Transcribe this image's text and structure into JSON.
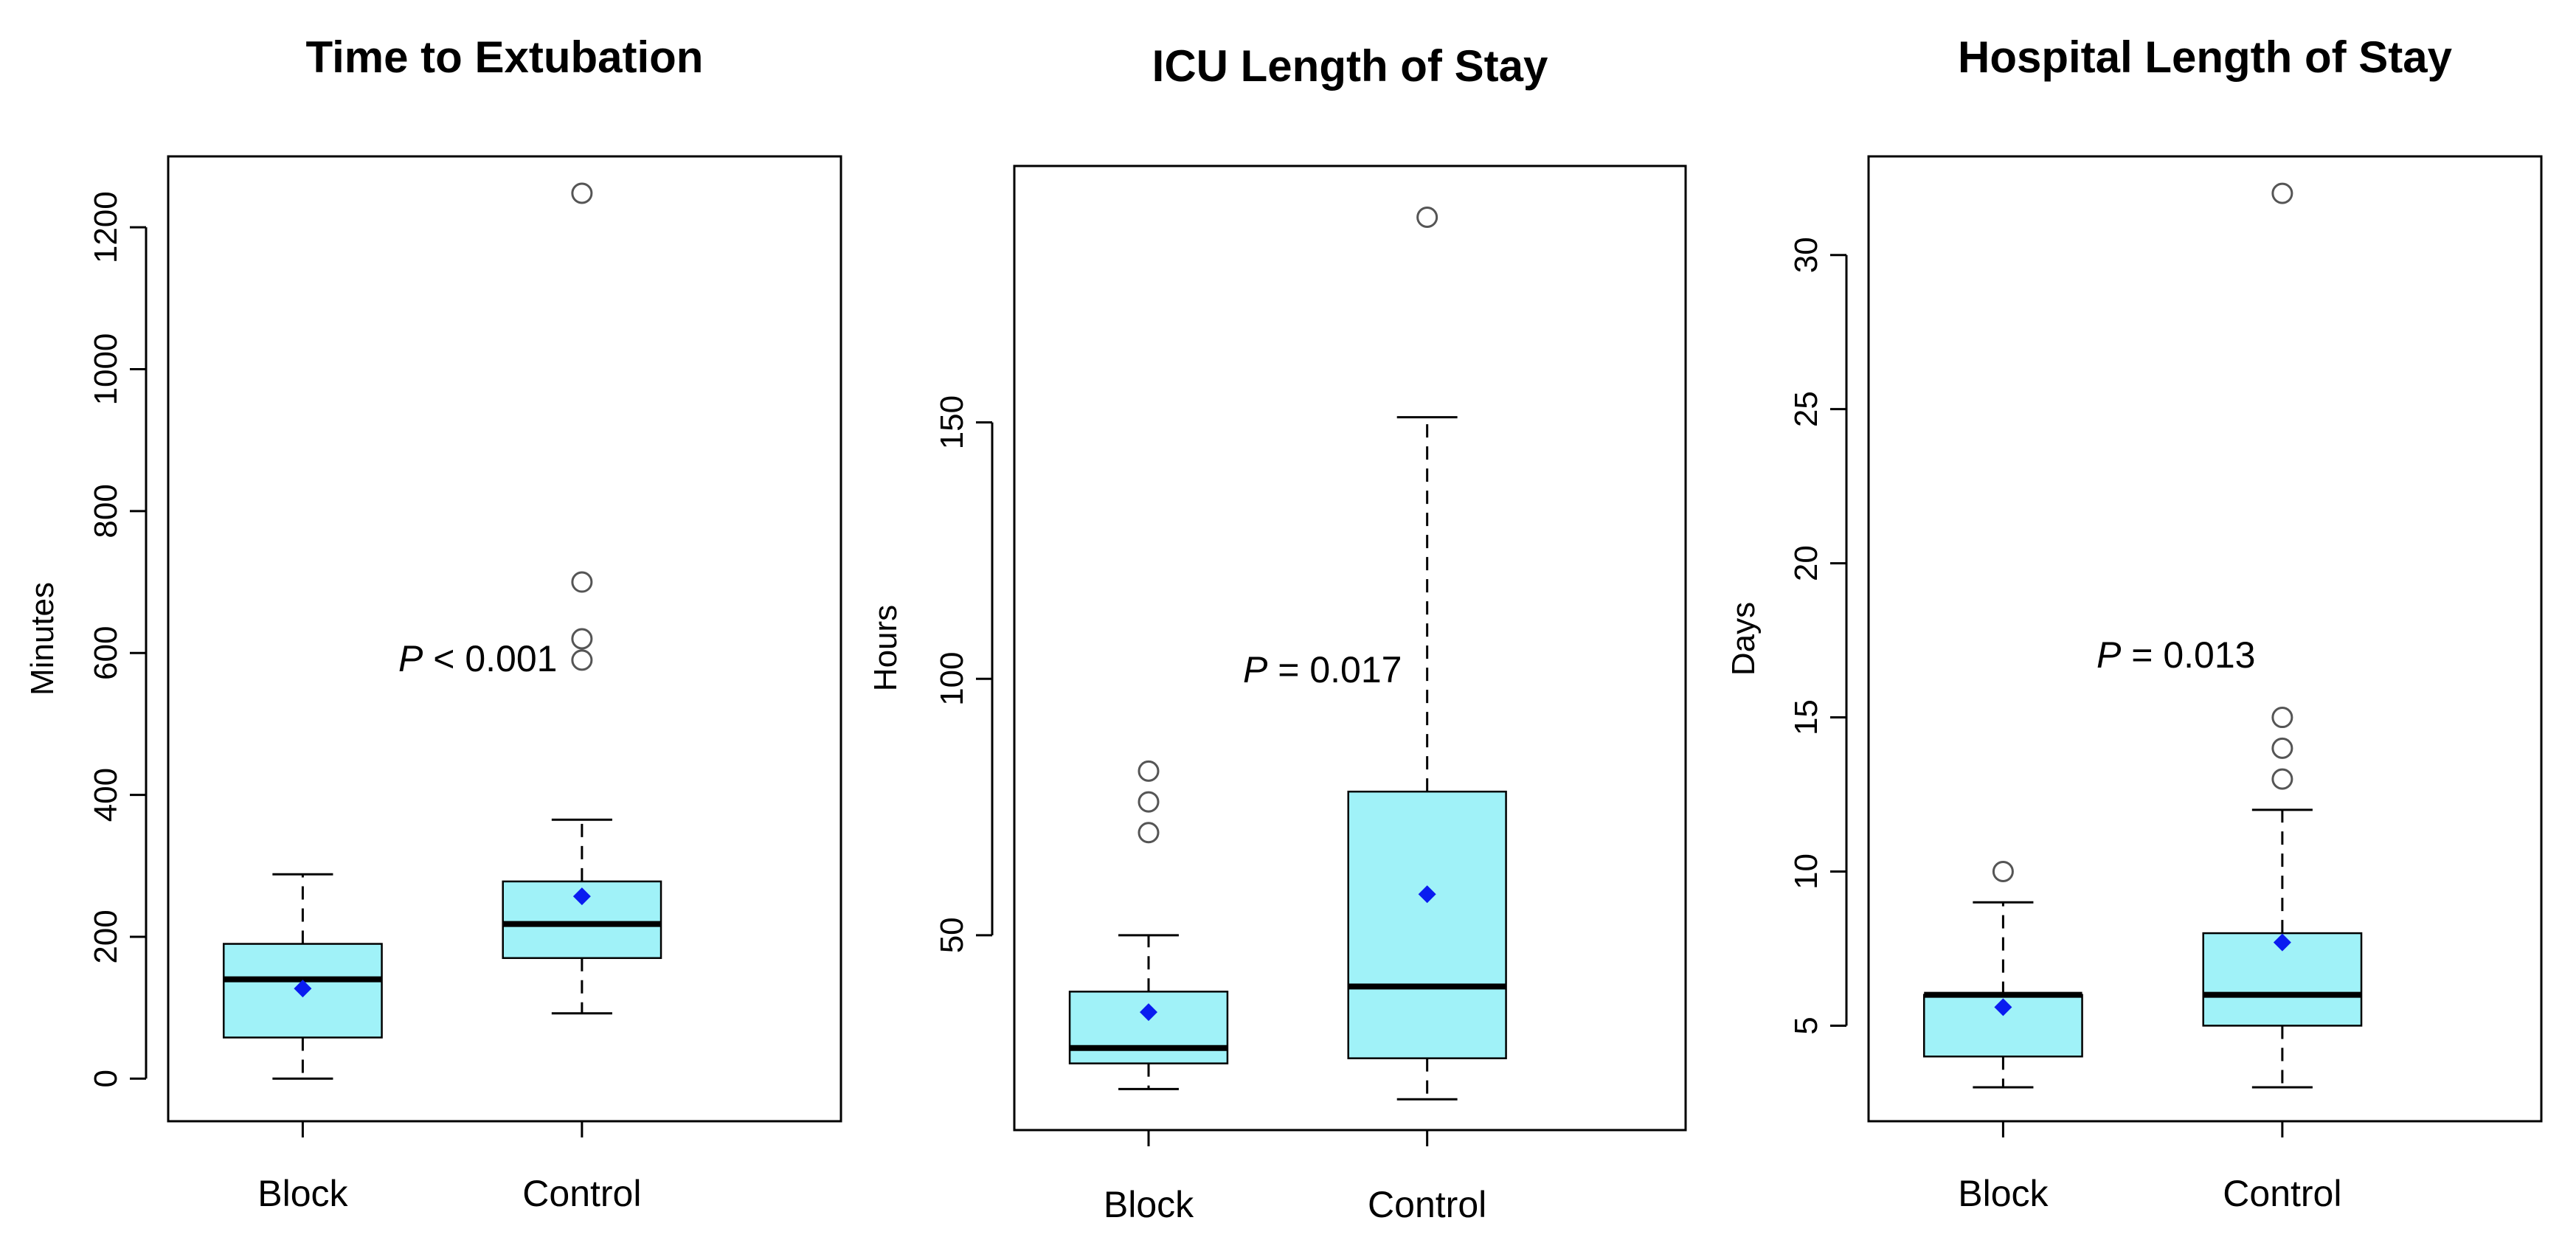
{
  "colors": {
    "box_fill": "#a0f2f8",
    "mean_marker": "#0a1cf0",
    "line": "#000000",
    "outlier": "#555555"
  },
  "chart_data": [
    {
      "type": "box",
      "title": "Time to Extubation",
      "xlabel": "",
      "ylabel": "Minutes",
      "ylim": [
        -60,
        1300
      ],
      "yticks": [
        0,
        200,
        400,
        600,
        800,
        1000,
        1200
      ],
      "annotation": {
        "prefix": "P",
        "text": " < 0.001"
      },
      "categories": [
        "Block",
        "Control"
      ],
      "boxes": [
        {
          "name": "Block",
          "min": 0,
          "q1": 58,
          "median": 140,
          "q3": 190,
          "max": 288,
          "mean": 127,
          "outliers": []
        },
        {
          "name": "Control",
          "min": 92,
          "q1": 170,
          "median": 218,
          "q3": 278,
          "max": 365,
          "mean": 257,
          "outliers": [
            1248,
            700,
            620,
            590
          ]
        }
      ]
    },
    {
      "type": "box",
      "title": "ICU Length of Stay",
      "xlabel": "",
      "ylabel": "Hours",
      "ylim": [
        12,
        200
      ],
      "yticks": [
        50,
        100,
        150
      ],
      "annotation": {
        "prefix": "P",
        "text": " = 0.017"
      },
      "categories": [
        "Block",
        "Control"
      ],
      "boxes": [
        {
          "name": "Block",
          "min": 20,
          "q1": 25,
          "median": 28,
          "q3": 39,
          "max": 50,
          "mean": 35,
          "outliers": [
            82,
            76,
            70
          ]
        },
        {
          "name": "Control",
          "min": 18,
          "q1": 26,
          "median": 40,
          "q3": 78,
          "max": 151,
          "mean": 58,
          "outliers": [
            190
          ]
        }
      ]
    },
    {
      "type": "box",
      "title": "Hospital Length of Stay",
      "xlabel": "",
      "ylabel": "Days",
      "ylim": [
        1.9,
        33.2
      ],
      "yticks": [
        5,
        10,
        15,
        20,
        25,
        30
      ],
      "annotation": {
        "prefix": "P",
        "text": " = 0.013"
      },
      "categories": [
        "Block",
        "Control"
      ],
      "boxes": [
        {
          "name": "Block",
          "min": 3,
          "q1": 4,
          "median": 6,
          "q3": 6,
          "max": 9,
          "mean": 5.6,
          "outliers": [
            10
          ]
        },
        {
          "name": "Control",
          "min": 3,
          "q1": 5,
          "median": 6,
          "q3": 8,
          "max": 12,
          "mean": 7.7,
          "outliers": [
            32,
            15,
            14,
            13
          ]
        }
      ]
    }
  ]
}
